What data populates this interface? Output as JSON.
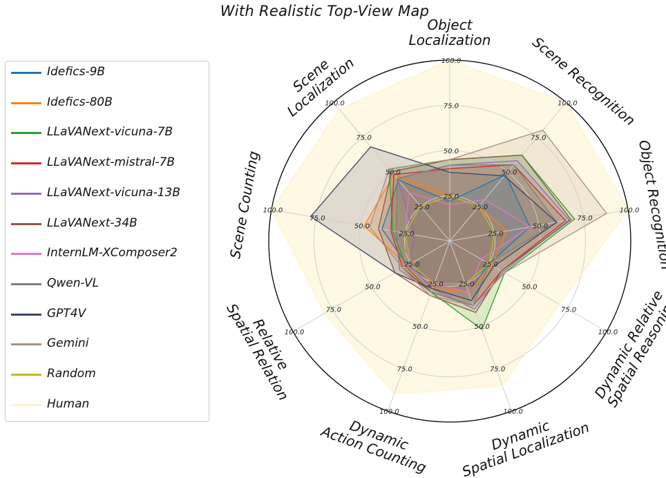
{
  "chart_data": {
    "type": "radar",
    "title": "With Realistic Top-View Map",
    "axes": [
      [
        "Object",
        "Localization"
      ],
      [
        "Scene Recognition"
      ],
      [
        "Object Recognition"
      ],
      [
        "Dynamic Relative",
        "Spatial Reasoning"
      ],
      [
        "Dynamic",
        "Spatial Localization"
      ],
      [
        "Dynamic",
        "Action Counting"
      ],
      [
        "Relative",
        "Spatial Relation"
      ],
      [
        "Scene Counting"
      ],
      [
        "Scene",
        "Localization"
      ]
    ],
    "ticks": [
      25,
      50,
      75,
      100
    ],
    "tick_labels": [
      "25.0",
      "50.0",
      "75.0",
      "100.0"
    ],
    "range": [
      0,
      100
    ],
    "legend_position": "left",
    "series": [
      {
        "name": "Idefics-9B",
        "color": "#1f77b4",
        "values": [
          22,
          48,
          45,
          25,
          30,
          25,
          27,
          38,
          44
        ]
      },
      {
        "name": "Idefics-80B",
        "color": "#ff7f0e",
        "values": [
          25,
          25,
          32,
          27,
          30,
          28,
          27,
          48,
          48
        ]
      },
      {
        "name": "LLaVANext-vicuna-7B",
        "color": "#2ca02c",
        "values": [
          45,
          62,
          70,
          35,
          52,
          30,
          28,
          32,
          52
        ]
      },
      {
        "name": "LLaVANext-mistral-7B",
        "color": "#d62728",
        "values": [
          40,
          55,
          65,
          33,
          38,
          30,
          30,
          33,
          48
        ]
      },
      {
        "name": "LLaVANext-vicuna-13B",
        "color": "#9467bd",
        "values": [
          42,
          58,
          67,
          34,
          40,
          28,
          26,
          20,
          45
        ]
      },
      {
        "name": "LLaVANext-34B",
        "color": "#8c564b",
        "values": [
          45,
          62,
          68,
          33,
          42,
          32,
          35,
          40,
          50
        ]
      },
      {
        "name": "InternLM-XComposer2",
        "color": "#e377c2",
        "values": [
          20,
          30,
          45,
          20,
          30,
          25,
          28,
          25,
          35
        ]
      },
      {
        "name": "Qwen-VL",
        "color": "#7f7f7f",
        "values": [
          42,
          55,
          60,
          25,
          38,
          30,
          32,
          30,
          45
        ]
      },
      {
        "name": "GPT4V",
        "color": "#3d4466",
        "values": [
          38,
          47,
          60,
          28,
          35,
          28,
          35,
          78,
          68
        ]
      },
      {
        "name": "Gemini",
        "color": "#a89080",
        "values": [
          45,
          80,
          88,
          35,
          38,
          32,
          30,
          45,
          52
        ]
      },
      {
        "name": "Random",
        "color": "#bcbd22",
        "values": [
          25,
          25,
          25,
          25,
          25,
          25,
          25,
          25,
          25
        ]
      },
      {
        "name": "Human",
        "color": "#fff2cc",
        "values": [
          100,
          100,
          100,
          70,
          85,
          90,
          80,
          100,
          95
        ]
      }
    ]
  }
}
